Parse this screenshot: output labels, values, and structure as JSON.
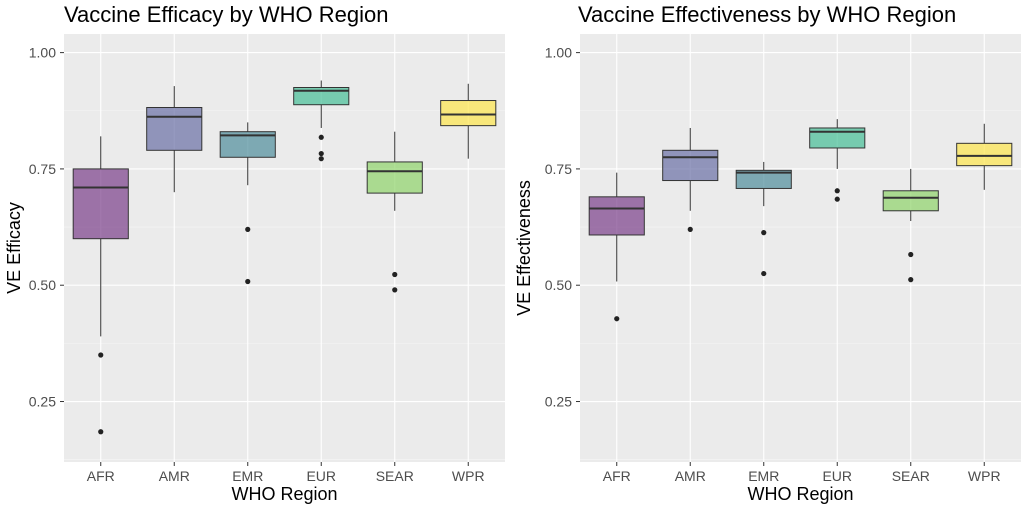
{
  "chart_data": [
    {
      "type": "box",
      "title": "Vaccine Efficacy by WHO Region",
      "xlabel": "WHO Region",
      "ylabel": "VE Efficacy",
      "ylim": [
        0.12,
        1.04
      ],
      "yticks": [
        "1.00",
        "0.75",
        "0.50",
        "0.25"
      ],
      "grid": true,
      "categories": [
        "AFR",
        "AMR",
        "EMR",
        "EUR",
        "SEAR",
        "WPR"
      ],
      "colors": [
        "#7b3f8a",
        "#6a6fa5",
        "#4e8d9b",
        "#45bd96",
        "#8fd36a",
        "#fde64b"
      ],
      "boxes": [
        {
          "category": "AFR",
          "q1": 0.6,
          "median": 0.71,
          "q3": 0.75,
          "whisker_low": 0.39,
          "whisker_high": 0.82,
          "outliers": [
            0.35,
            0.185
          ]
        },
        {
          "category": "AMR",
          "q1": 0.79,
          "median": 0.862,
          "q3": 0.882,
          "whisker_low": 0.7,
          "whisker_high": 0.928,
          "outliers": []
        },
        {
          "category": "EMR",
          "q1": 0.775,
          "median": 0.822,
          "q3": 0.83,
          "whisker_low": 0.715,
          "whisker_high": 0.85,
          "outliers": [
            0.62,
            0.508
          ]
        },
        {
          "category": "EUR",
          "q1": 0.888,
          "median": 0.918,
          "q3": 0.925,
          "whisker_low": 0.838,
          "whisker_high": 0.94,
          "outliers": [
            0.818,
            0.783,
            0.772
          ]
        },
        {
          "category": "SEAR",
          "q1": 0.698,
          "median": 0.745,
          "q3": 0.765,
          "whisker_low": 0.66,
          "whisker_high": 0.83,
          "outliers": [
            0.523,
            0.49
          ]
        },
        {
          "category": "WPR",
          "q1": 0.843,
          "median": 0.867,
          "q3": 0.897,
          "whisker_low": 0.772,
          "whisker_high": 0.933,
          "outliers": []
        }
      ]
    },
    {
      "type": "box",
      "title": "Vaccine Effectiveness by WHO Region",
      "xlabel": "WHO Region",
      "ylabel": "VE Effectiveness",
      "ylim": [
        0.12,
        1.04
      ],
      "yticks": [
        "1.00",
        "0.75",
        "0.50",
        "0.25"
      ],
      "grid": true,
      "categories": [
        "AFR",
        "AMR",
        "EMR",
        "EUR",
        "SEAR",
        "WPR"
      ],
      "colors": [
        "#7b3f8a",
        "#6a6fa5",
        "#4e8d9b",
        "#45bd96",
        "#8fd36a",
        "#fde64b"
      ],
      "boxes": [
        {
          "category": "AFR",
          "q1": 0.608,
          "median": 0.665,
          "q3": 0.69,
          "whisker_low": 0.508,
          "whisker_high": 0.742,
          "outliers": [
            0.428
          ]
        },
        {
          "category": "AMR",
          "q1": 0.725,
          "median": 0.775,
          "q3": 0.79,
          "whisker_low": 0.66,
          "whisker_high": 0.838,
          "outliers": [
            0.62
          ]
        },
        {
          "category": "EMR",
          "q1": 0.708,
          "median": 0.742,
          "q3": 0.747,
          "whisker_low": 0.67,
          "whisker_high": 0.765,
          "outliers": [
            0.613,
            0.525
          ]
        },
        {
          "category": "EUR",
          "q1": 0.795,
          "median": 0.83,
          "q3": 0.838,
          "whisker_low": 0.75,
          "whisker_high": 0.857,
          "outliers": [
            0.703,
            0.685
          ]
        },
        {
          "category": "SEAR",
          "q1": 0.66,
          "median": 0.688,
          "q3": 0.703,
          "whisker_low": 0.638,
          "whisker_high": 0.75,
          "outliers": [
            0.566,
            0.512
          ]
        },
        {
          "category": "WPR",
          "q1": 0.757,
          "median": 0.778,
          "q3": 0.805,
          "whisker_low": 0.705,
          "whisker_high": 0.847,
          "outliers": []
        }
      ]
    }
  ]
}
